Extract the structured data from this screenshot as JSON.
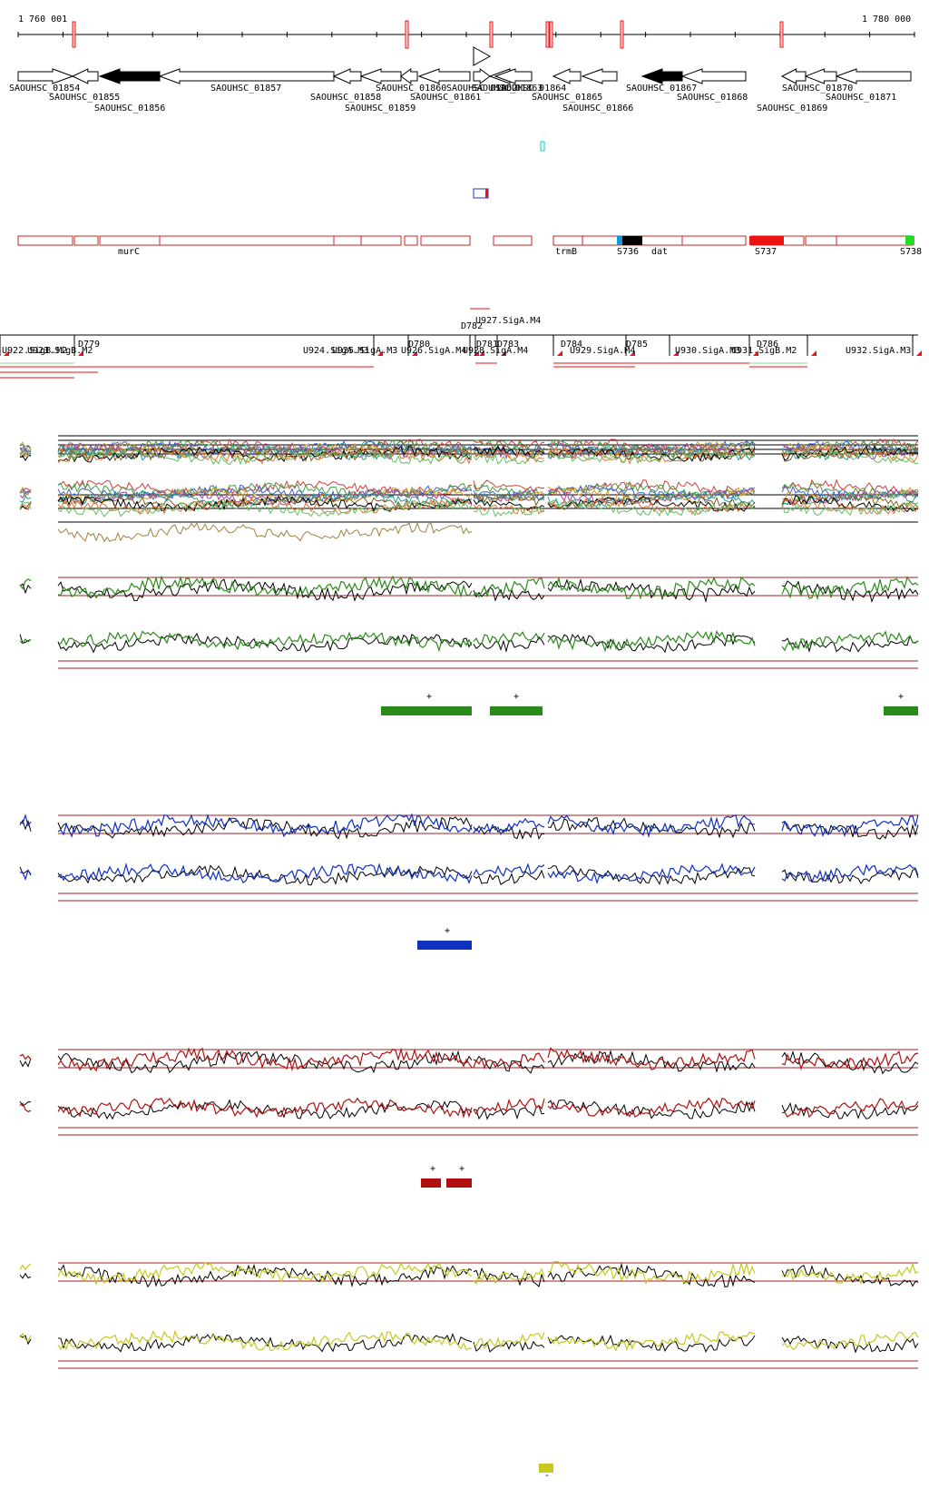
{
  "axis": {
    "start_label": "1 760 001",
    "end_label": "1 780 000"
  },
  "genes": [
    {
      "label": "SAOUHSC_01854",
      "row": 0,
      "fill": "white",
      "dir": "right"
    },
    {
      "label": "SAOUHSC_01855",
      "row": 1,
      "fill": "white",
      "dir": "left"
    },
    {
      "label": "SAOUHSC_01856",
      "row": 2,
      "fill": "black",
      "dir": "left"
    },
    {
      "label": "SAOUHSC_01857",
      "row": 0,
      "fill": "white",
      "dir": "left"
    },
    {
      "label": "SAOUHSC_01858",
      "row": 1,
      "fill": "white",
      "dir": "left"
    },
    {
      "label": "SAOUHSC_01859",
      "row": 2,
      "fill": "white",
      "dir": "left"
    },
    {
      "label": "SAOUHSC_01860",
      "row": 0,
      "fill": "white",
      "dir": "left"
    },
    {
      "label": "SAOUHSC_01861",
      "row": 1,
      "fill": "white",
      "dir": "left"
    },
    {
      "label": "SAOUHSC_01862",
      "row": 0,
      "fill": "white",
      "dir": "right"
    },
    {
      "label": "SAOUHSC_01863",
      "row": 0,
      "fill": "white",
      "dir": "left"
    },
    {
      "label": "SAOUHSC_01864",
      "row": 0,
      "fill": "white",
      "dir": "left"
    },
    {
      "label": "SAOUHSC_01865",
      "row": 1,
      "fill": "white",
      "dir": "left"
    },
    {
      "label": "SAOUHSC_01866",
      "row": 2,
      "fill": "white",
      "dir": "left"
    },
    {
      "label": "SAOUHSC_01867",
      "row": 0,
      "fill": "black",
      "dir": "left"
    },
    {
      "label": "SAOUHSC_01868",
      "row": 1,
      "fill": "white",
      "dir": "left"
    },
    {
      "label": "SAOUHSC_01869",
      "row": 2,
      "fill": "white",
      "dir": "left"
    },
    {
      "label": "SAOUHSC_01870",
      "row": 0,
      "fill": "white",
      "dir": "left"
    },
    {
      "label": "SAOUHSC_01871",
      "row": 1,
      "fill": "white",
      "dir": "left"
    }
  ],
  "feature_labels": [
    "murC",
    "trmB",
    "S736",
    "dat",
    "S737",
    "S738"
  ],
  "segment_labels": {
    "downstream": [
      "D779",
      "D780",
      "D781",
      "D782",
      "D783",
      "D784",
      "D785",
      "D786"
    ],
    "upstream": [
      "U922.SigB.M2",
      "U923.SigB.M2",
      "U924.SigA.M3",
      "U925.SigA.M3",
      "U926.SigA.M4",
      "U927.SigA.M4",
      "U928.SigA.M4",
      "U929.SigA.M4",
      "U930.SigA.M3",
      "U931.SigB.M2",
      "U932.SigA.M3"
    ]
  },
  "panels": [
    {
      "name": "multi-condition",
      "color": "#444444"
    },
    {
      "name": "green",
      "color": "#2a8a1a",
      "marks": [
        "+",
        "+",
        "+"
      ]
    },
    {
      "name": "blue",
      "color": "#1030c0",
      "marks": [
        "+"
      ]
    },
    {
      "name": "red",
      "color": "#b01010",
      "marks": [
        "+",
        "+"
      ]
    },
    {
      "name": "yellow",
      "color": "#c8c820",
      "marks": [
        "-"
      ]
    }
  ],
  "colors": {
    "gene_box": "#cc2222",
    "cyan": "#00cccc",
    "blue": "#2233cc",
    "green": "#22cc22",
    "red": "#ee1111"
  }
}
